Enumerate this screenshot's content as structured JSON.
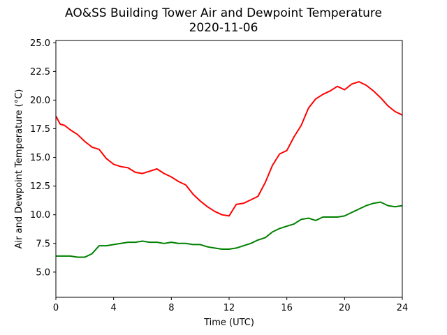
{
  "chart_data": {
    "type": "line",
    "title": "AO&SS Building Tower Air and Dewpoint Temperature",
    "subtitle": "2020-11-06",
    "xlabel": "Time (UTC)",
    "ylabel": "Air and Dewpoint Temperature (°C)",
    "xlim": [
      0,
      24
    ],
    "ylim": [
      2.8,
      25.2
    ],
    "xticks": [
      0,
      4,
      8,
      12,
      16,
      20,
      24
    ],
    "xtick_labels": [
      "0",
      "4",
      "8",
      "12",
      "16",
      "20",
      "24"
    ],
    "yticks": [
      5.0,
      7.5,
      10.0,
      12.5,
      15.0,
      17.5,
      20.0,
      22.5,
      25.0
    ],
    "ytick_labels": [
      "5.0",
      "7.5",
      "10.0",
      "12.5",
      "15.0",
      "17.5",
      "20.0",
      "22.5",
      "25.0"
    ],
    "grid": false,
    "legend": "none",
    "series": [
      {
        "color": "#ff0000",
        "x": [
          0,
          0.3,
          0.6,
          1,
          1.5,
          2,
          2.5,
          3,
          3.5,
          4,
          4.5,
          5,
          5.5,
          6,
          6.5,
          7,
          7.5,
          8,
          8.5,
          9,
          9.5,
          10,
          10.5,
          11,
          11.5,
          12,
          12.5,
          13,
          13.5,
          14,
          14.5,
          15,
          15.5,
          16,
          16.5,
          17,
          17.5,
          18,
          18.5,
          19,
          19.5,
          20,
          20.5,
          21,
          21.5,
          22,
          22.5,
          23,
          23.5,
          24
        ],
        "y": [
          18.6,
          17.9,
          17.8,
          17.4,
          17.0,
          16.4,
          15.9,
          15.7,
          14.9,
          14.4,
          14.2,
          14.1,
          13.7,
          13.6,
          13.8,
          14.0,
          13.6,
          13.3,
          12.9,
          12.6,
          11.8,
          11.2,
          10.7,
          10.3,
          10.0,
          9.9,
          10.9,
          11.0,
          11.3,
          11.6,
          12.8,
          14.3,
          15.3,
          15.6,
          16.8,
          17.8,
          19.3,
          20.1,
          20.5,
          20.8,
          21.2,
          20.9,
          21.4,
          21.6,
          21.3,
          20.8,
          20.2,
          19.5,
          19.0,
          18.7
        ]
      },
      {
        "color": "#008000",
        "x": [
          0,
          0.5,
          1,
          1.5,
          2,
          2.5,
          3,
          3.5,
          4,
          4.5,
          5,
          5.5,
          6,
          6.5,
          7,
          7.5,
          8,
          8.5,
          9,
          9.5,
          10,
          10.5,
          11,
          11.5,
          12,
          12.5,
          13,
          13.5,
          14,
          14.5,
          15,
          15.5,
          16,
          16.5,
          17,
          17.5,
          18,
          18.5,
          19,
          19.5,
          20,
          20.5,
          21,
          21.5,
          22,
          22.5,
          23,
          23.5,
          24
        ],
        "y": [
          6.4,
          6.4,
          6.4,
          6.3,
          6.3,
          6.6,
          7.3,
          7.3,
          7.4,
          7.5,
          7.6,
          7.6,
          7.7,
          7.6,
          7.6,
          7.5,
          7.6,
          7.5,
          7.5,
          7.4,
          7.4,
          7.2,
          7.1,
          7.0,
          7.0,
          7.1,
          7.3,
          7.5,
          7.8,
          8.0,
          8.5,
          8.8,
          9.0,
          9.2,
          9.6,
          9.7,
          9.5,
          9.8,
          9.8,
          9.8,
          9.9,
          10.2,
          10.5,
          10.8,
          11.0,
          11.1,
          10.8,
          10.7,
          10.8
        ]
      }
    ]
  }
}
